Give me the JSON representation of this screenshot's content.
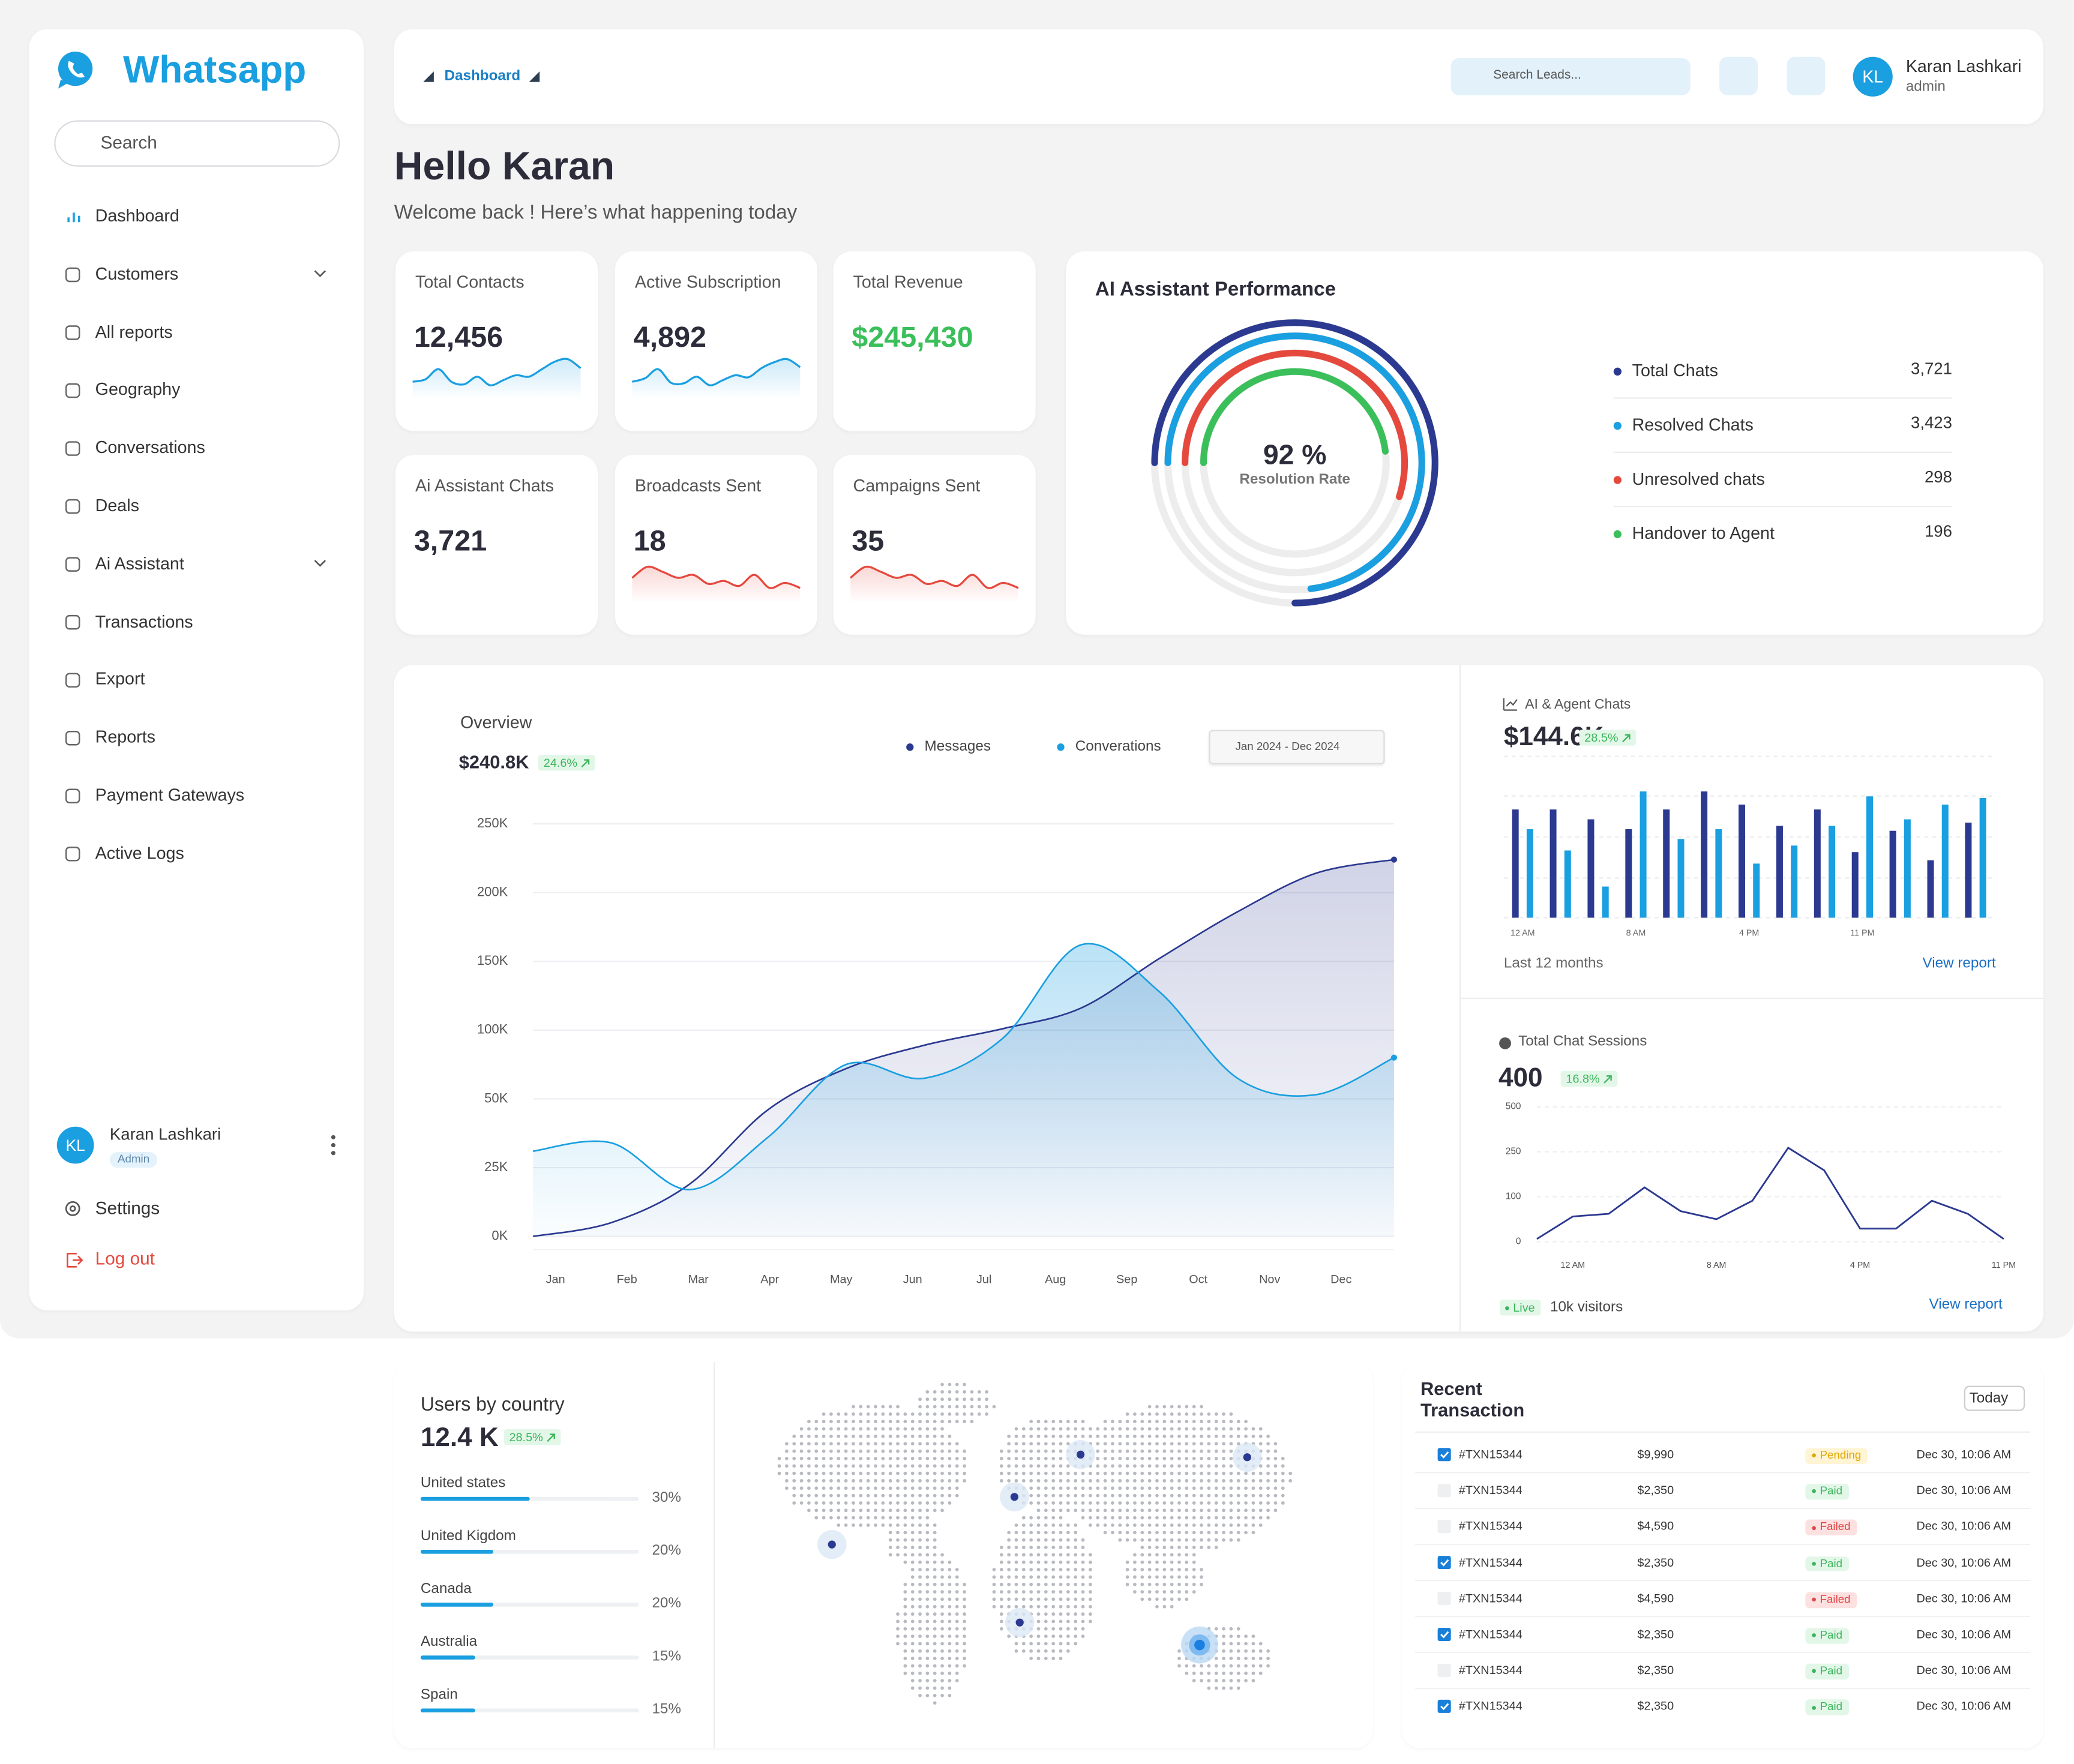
{
  "sidebar": {
    "brand": "Whatsapp",
    "search": "Search",
    "nav": [
      {
        "label": "Dashboard",
        "active": true
      },
      {
        "label": "Customers",
        "expandable": true
      },
      {
        "label": "All reports"
      },
      {
        "label": "Geography"
      },
      {
        "label": "Conversations"
      },
      {
        "label": "Deals"
      },
      {
        "label": "Ai Assistant",
        "expandable": true
      },
      {
        "label": "Transactions"
      },
      {
        "label": "Export"
      },
      {
        "label": "Reports"
      },
      {
        "label": "Payment Gateways"
      },
      {
        "label": "Active Logs"
      }
    ],
    "user": {
      "initials": "KL",
      "name": "Karan Lashkari",
      "role": "Admin"
    },
    "settings": "Settings",
    "logout": "Log out"
  },
  "header": {
    "breadcrumb": "Dashboard",
    "search": "Search Leads...",
    "user": {
      "initials": "KL",
      "name": "Karan Lashkari",
      "role": "admin"
    }
  },
  "greeting": {
    "title": "Hello Karan",
    "subtitle": "Welcome back !  Here’s what happening today"
  },
  "stats": [
    {
      "label": "Total Contacts",
      "value": "12,456",
      "trend": {
        "color": "#1a9fe0",
        "ylim": [
          0,
          100
        ],
        "values": [
          35,
          40,
          60,
          35,
          30,
          45,
          28,
          38,
          48,
          45,
          60,
          75,
          80,
          62
        ]
      }
    },
    {
      "label": "Active Subscription",
      "value": "4,892",
      "trend": {
        "color": "#1a9fe0",
        "ylim": [
          0,
          100
        ],
        "values": [
          35,
          42,
          60,
          33,
          32,
          45,
          28,
          38,
          48,
          44,
          62,
          74,
          80,
          64
        ]
      }
    },
    {
      "label": "Total Revenue",
      "value": "$245,430",
      "value_color": "#3bbf5a"
    },
    {
      "label": "Ai Assistant Chats",
      "value": "3,721"
    },
    {
      "label": "Broadcasts Sent",
      "value": "18",
      "trend": {
        "color": "#e5483d",
        "ylim": [
          0,
          100
        ],
        "values": [
          50,
          72,
          62,
          50,
          56,
          38,
          44,
          34,
          56,
          30,
          40,
          30
        ]
      }
    },
    {
      "label": "Campaigns Sent",
      "value": "35",
      "trend": {
        "color": "#e5483d",
        "ylim": [
          0,
          100
        ],
        "values": [
          50,
          72,
          62,
          50,
          56,
          38,
          44,
          34,
          56,
          30,
          40,
          30
        ]
      }
    }
  ],
  "ai_performance": {
    "title": "AI Assistant Performance",
    "center_value": "92 %",
    "center_label": "Resolution Rate",
    "items": [
      {
        "name": "Total Chats",
        "value": "3,721",
        "color": "#2b3990",
        "arc": 75
      },
      {
        "name": "Resolved Chats",
        "value": "3,423",
        "color": "#1a9fe0",
        "arc": 73
      },
      {
        "name": "Unresolved chats",
        "value": "298",
        "color": "#e5483d",
        "arc": 55
      },
      {
        "name": "Handover to Agent",
        "value": "196",
        "color": "#3bbf5a",
        "arc": 48
      }
    ]
  },
  "overview": {
    "type": "line",
    "title": "Overview",
    "total": "$240.8K",
    "change": "24.6%",
    "date_range": "Jan 2024 - Dec 2024",
    "area": true,
    "grid": true,
    "categories": [
      "Jan",
      "Feb",
      "Mar",
      "Apr",
      "May",
      "Jun",
      "Jul",
      "Aug",
      "Sep",
      "Oct",
      "Nov",
      "Dec"
    ],
    "series": [
      {
        "name": "Messages",
        "color": "#2b3990",
        "values": [
          0,
          5000,
          19000,
          46000,
          72000,
          89000,
          101000,
          116000,
          152000,
          186000,
          214000,
          224000
        ]
      },
      {
        "name": "Converations",
        "color": "#1a9fe0",
        "values": [
          31000,
          34000,
          17000,
          36000,
          75000,
          65000,
          94000,
          162000,
          128000,
          65000,
          53000,
          80000
        ]
      }
    ],
    "ylim": [
      0,
      250000
    ],
    "yticks": [
      {
        "value": 0,
        "label": "0K"
      },
      {
        "value": 25000,
        "label": "25K"
      },
      {
        "value": 50000,
        "label": "50K"
      },
      {
        "value": 100000,
        "label": "100K"
      },
      {
        "value": 150000,
        "label": "150K"
      },
      {
        "value": 200000,
        "label": "200K"
      },
      {
        "value": 250000,
        "label": "250K"
      }
    ]
  },
  "agent_chats": {
    "type": "bar",
    "title": "AI & Agent Chats",
    "total": "$144.6K",
    "change": "28.5%",
    "footer": "Last 12 months",
    "link": "View report",
    "ylim": [
      0,
      100
    ],
    "categories": [
      "12 AM",
      null,
      null,
      "8 AM",
      null,
      null,
      "4 PM",
      null,
      null,
      "11 PM",
      null,
      null,
      null
    ],
    "series": [
      {
        "color": "#2b3990",
        "values": [
          66,
          66,
          60,
          54,
          66,
          77,
          69,
          56,
          66,
          40,
          53,
          35,
          58
        ]
      },
      {
        "color": "#1a9fe0",
        "values": [
          54,
          41,
          19,
          77,
          48,
          54,
          33,
          44,
          56,
          74,
          60,
          69,
          73
        ]
      }
    ]
  },
  "sessions": {
    "type": "line",
    "title": "Total Chat Sessions",
    "total": "400",
    "change": "16.8%",
    "live": "Live",
    "visitors": "10k visitors",
    "link": "View report",
    "grid": true,
    "categories": [
      null,
      "12 AM",
      null,
      null,
      null,
      "8 AM",
      null,
      null,
      null,
      "4 PM",
      null,
      null,
      null,
      "11 PM"
    ],
    "series": [
      {
        "color": "#2b3990",
        "values": [
          6,
          56,
          62,
          131,
          68,
          50,
          91,
          272,
          188,
          29,
          29,
          91,
          62,
          6
        ]
      }
    ],
    "ylim": [
      0,
      500
    ],
    "yticks": [
      0,
      100,
      250,
      500
    ]
  },
  "users_by_country": {
    "title": "Users by country",
    "total": "12.4 K",
    "change": "28.5%",
    "xlim": [
      0,
      60
    ],
    "color": "#1a9fe0",
    "countries": [
      {
        "name": "United states",
        "value": 30,
        "value_label": "30%"
      },
      {
        "name": "United Kigdom",
        "value": 20,
        "value_label": "20%"
      },
      {
        "name": "Canada",
        "value": 20,
        "value_label": "20%"
      },
      {
        "name": "Australia",
        "value": 15,
        "value_label": "15%"
      },
      {
        "name": "Spain",
        "value": 15,
        "value_label": "15%"
      }
    ]
  },
  "transactions": {
    "title": "Recent Transaction",
    "filter": "Today",
    "rows": [
      {
        "id": "#TXN15344",
        "amount": "$9,990",
        "status": "Pending",
        "status_color": "#e0a800",
        "status_bg": "#fff4d4",
        "date": "Dec 30, 10:06 AM",
        "checked": true
      },
      {
        "id": "#TXN15344",
        "amount": "$2,350",
        "status": "Paid",
        "status_color": "#3bb55b",
        "status_bg": "#e3f7e8",
        "date": "Dec 30, 10:06 AM",
        "checked": false
      },
      {
        "id": "#TXN15344",
        "amount": "$4,590",
        "status": "Failed",
        "status_color": "#e04848",
        "status_bg": "#fde0e0",
        "date": "Dec 30, 10:06 AM",
        "checked": false
      },
      {
        "id": "#TXN15344",
        "amount": "$2,350",
        "status": "Paid",
        "status_color": "#3bb55b",
        "status_bg": "#e3f7e8",
        "date": "Dec 30, 10:06 AM",
        "checked": true
      },
      {
        "id": "#TXN15344",
        "amount": "$4,590",
        "status": "Failed",
        "status_color": "#e04848",
        "status_bg": "#fde0e0",
        "date": "Dec 30, 10:06 AM",
        "checked": false
      },
      {
        "id": "#TXN15344",
        "amount": "$2,350",
        "status": "Paid",
        "status_color": "#3bb55b",
        "status_bg": "#e3f7e8",
        "date": "Dec 30, 10:06 AM",
        "checked": true
      },
      {
        "id": "#TXN15344",
        "amount": "$2,350",
        "status": "Paid",
        "status_color": "#3bb55b",
        "status_bg": "#e3f7e8",
        "date": "Dec 30, 10:06 AM",
        "checked": false
      },
      {
        "id": "#TXN15344",
        "amount": "$2,350",
        "status": "Paid",
        "status_color": "#3bb55b",
        "status_bg": "#e3f7e8",
        "date": "Dec 30, 10:06 AM",
        "checked": true
      }
    ]
  }
}
